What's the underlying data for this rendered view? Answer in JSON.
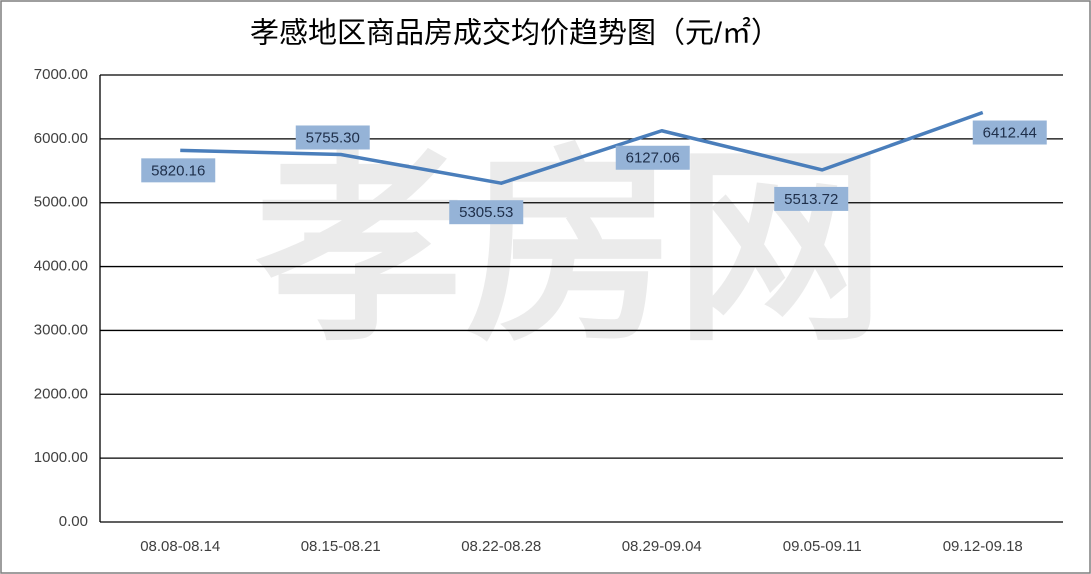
{
  "chart_data": {
    "type": "line",
    "title": "孝感地区商品房成交均价趋势图（元/㎡）",
    "watermark": "孝房网",
    "categories": [
      "08.08-08.14",
      "08.15-08.21",
      "08.22-08.28",
      "08.29-09.04",
      "09.05-09.11",
      "09.12-09.18"
    ],
    "values": [
      5820.16,
      5755.3,
      5305.53,
      6127.06,
      5513.72,
      6412.44
    ],
    "value_labels": [
      "5820.16",
      "5755.30",
      "5305.53",
      "6127.06",
      "5513.72",
      "6412.44"
    ],
    "color": "#4a7ebb",
    "ylim": [
      0,
      7000
    ],
    "yticks": [
      {
        "value": 0,
        "label": "0.00"
      },
      {
        "value": 1000,
        "label": "1000.00"
      },
      {
        "value": 2000,
        "label": "2000.00"
      },
      {
        "value": 3000,
        "label": "3000.00"
      },
      {
        "value": 4000,
        "label": "4000.00"
      },
      {
        "value": 5000,
        "label": "5000.00"
      },
      {
        "value": 6000,
        "label": "6000.00"
      },
      {
        "value": 7000,
        "label": "7000.00"
      }
    ],
    "grid": true
  }
}
